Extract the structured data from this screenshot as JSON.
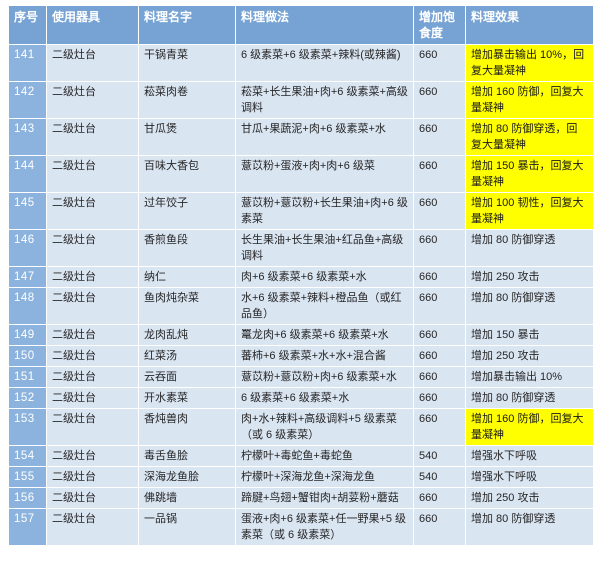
{
  "colors": {
    "header_bg": "#76a3d3",
    "index_bg": "#8cb3de",
    "row_bg": "#dae5f2",
    "highlight_bg": "#ffff00",
    "grid": "#ffffff",
    "header_text": "#ffffff",
    "body_text": "#262626"
  },
  "table": {
    "headers": [
      "序号",
      "使用器具",
      "料理名字",
      "料理做法",
      "增加饱食度",
      "料理效果"
    ],
    "rows": [
      {
        "no": "141",
        "tool": "二级灶台",
        "name": "干锅青菜",
        "recipe": "6 级素菜+6 级素菜+辣料(或辣酱)",
        "satiety": "660",
        "effect": "增加暴击输出 10%，回复大量凝神",
        "highlight": true
      },
      {
        "no": "142",
        "tool": "二级灶台",
        "name": "菘菜肉卷",
        "recipe": "菘菜+长生果油+肉+6 级素菜+高级调料",
        "satiety": "660",
        "effect": "增加 160 防御，回复大量凝神",
        "highlight": true
      },
      {
        "no": "143",
        "tool": "二级灶台",
        "name": "甘瓜煲",
        "recipe": "甘瓜+果蔬泥+肉+6 级素菜+水",
        "satiety": "660",
        "effect": "增加 80 防御穿透，回复大量凝神",
        "highlight": true
      },
      {
        "no": "144",
        "tool": "二级灶台",
        "name": "百味大香包",
        "recipe": "薏苡粉+蛋液+肉+肉+6 级菜",
        "satiety": "660",
        "effect": "增加 150 暴击，回复大量凝神",
        "highlight": true
      },
      {
        "no": "145",
        "tool": "二级灶台",
        "name": "过年饺子",
        "recipe": "薏苡粉+薏苡粉+长生果油+肉+6 级素菜",
        "satiety": "660",
        "effect": "增加 100 韧性，回复大量凝神",
        "highlight": true
      },
      {
        "no": "146",
        "tool": "二级灶台",
        "name": "香煎鱼段",
        "recipe": "长生果油+长生果油+红品鱼+高级调料",
        "satiety": "660",
        "effect": "增加 80 防御穿透",
        "highlight": false
      },
      {
        "no": "147",
        "tool": "二级灶台",
        "name": "纳仁",
        "recipe": "肉+6 级素菜+6 级素菜+水",
        "satiety": "660",
        "effect": "增加 250 攻击",
        "highlight": false
      },
      {
        "no": "148",
        "tool": "二级灶台",
        "name": "鱼肉炖杂菜",
        "recipe": "水+6 级素菜+辣料+橙品鱼（或红品鱼）",
        "satiety": "660",
        "effect": "增加 80 防御穿透",
        "highlight": false
      },
      {
        "no": "149",
        "tool": "二级灶台",
        "name": "龙肉乱炖",
        "recipe": "鼍龙肉+6 级素菜+6 级素菜+水",
        "satiety": "660",
        "effect": "增加 150 暴击",
        "highlight": false
      },
      {
        "no": "150",
        "tool": "二级灶台",
        "name": "红菜汤",
        "recipe": "蕃柿+6 级素菜+水+水+混合酱",
        "satiety": "660",
        "effect": "增加 250 攻击",
        "highlight": false
      },
      {
        "no": "151",
        "tool": "二级灶台",
        "name": "云吞面",
        "recipe": "薏苡粉+薏苡粉+肉+6 级素菜+水",
        "satiety": "660",
        "effect": "增加暴击输出 10%",
        "highlight": false
      },
      {
        "no": "152",
        "tool": "二级灶台",
        "name": "开水素菜",
        "recipe": "6 级素菜+6 级素菜+水",
        "satiety": "660",
        "effect": "增加 80 防御穿透",
        "highlight": false
      },
      {
        "no": "153",
        "tool": "二级灶台",
        "name": "香炖兽肉",
        "recipe": "肉+水+辣料+高级调料+5 级素菜（或 6 级素菜）",
        "satiety": "660",
        "effect": "增加 160 防御，回复大量凝神",
        "highlight": true
      },
      {
        "no": "154",
        "tool": "二级灶台",
        "name": "毒舌鱼脍",
        "recipe": "柠檬叶+毒蛇鱼+毒蛇鱼",
        "satiety": "540",
        "effect": "增强水下呼吸",
        "highlight": false
      },
      {
        "no": "155",
        "tool": "二级灶台",
        "name": "深海龙鱼脍",
        "recipe": "柠檬叶+深海龙鱼+深海龙鱼",
        "satiety": "540",
        "effect": "增强水下呼吸",
        "highlight": false
      },
      {
        "no": "156",
        "tool": "二级灶台",
        "name": "佛跳墙",
        "recipe": "蹄腱+鸟翅+蟹钳肉+胡荽粉+蘑菇",
        "satiety": "660",
        "effect": "增加 250 攻击",
        "highlight": false
      },
      {
        "no": "157",
        "tool": "二级灶台",
        "name": "一品锅",
        "recipe": "蛋液+肉+6 级素菜+任一野果+5 级素菜（或 6 级素菜）",
        "satiety": "660",
        "effect": "增加 80 防御穿透",
        "highlight": false
      }
    ]
  }
}
